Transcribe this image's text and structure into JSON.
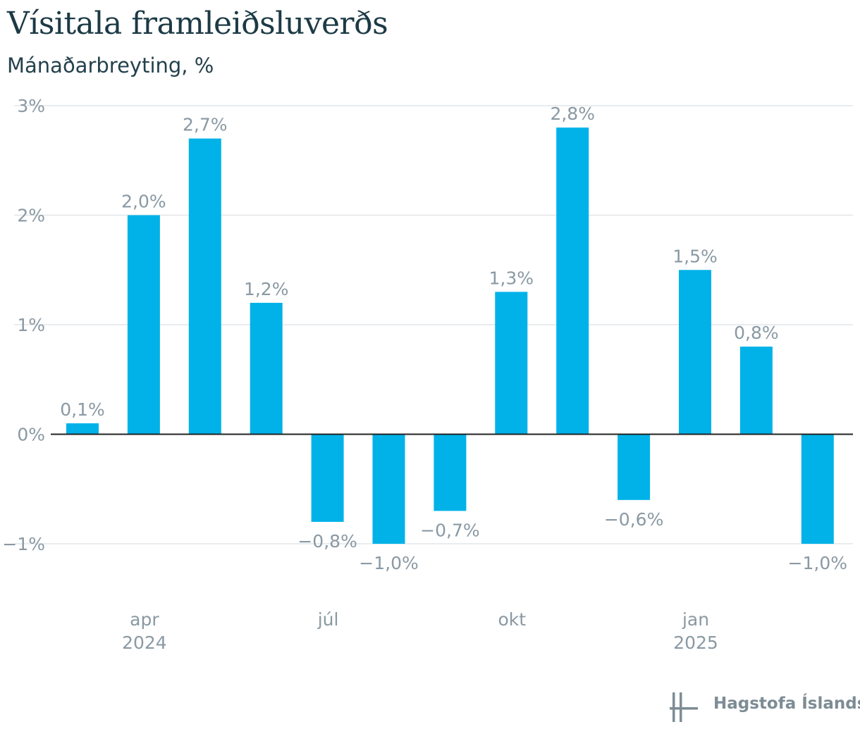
{
  "header": {
    "title": "Vísitala framleiðsluverðs",
    "subtitle": "Mánaðarbreyting, %"
  },
  "chart_data": {
    "type": "bar",
    "categories": [
      "2024-03",
      "2024-04",
      "2024-05",
      "2024-06",
      "2024-07",
      "2024-08",
      "2024-09",
      "2024-10",
      "2024-11",
      "2024-12",
      "2025-01",
      "2025-02",
      "2025-03"
    ],
    "values": [
      0.1,
      2.0,
      2.7,
      1.2,
      -0.8,
      -1.0,
      -0.7,
      1.3,
      2.8,
      -0.6,
      1.5,
      0.8,
      -1.0
    ],
    "data_labels": [
      "0,1%",
      "2,0%",
      "2,7%",
      "1,2%",
      "−0,8%",
      "−1,0%",
      "−0,7%",
      "1,3%",
      "2,8%",
      "−0,6%",
      "1,5%",
      "0,8%",
      "−1,0%"
    ],
    "ylim": [
      -1,
      3
    ],
    "y_ticks": [
      {
        "value": 3,
        "label": "3%"
      },
      {
        "value": 2,
        "label": "2%"
      },
      {
        "value": 1,
        "label": "1%"
      },
      {
        "value": 0,
        "label": "0%"
      },
      {
        "value": -1,
        "label": "−1%"
      }
    ],
    "x_ticks": [
      {
        "index": 1,
        "label": "apr",
        "sublabel": "2024"
      },
      {
        "index": 4,
        "label": "júl",
        "sublabel": ""
      },
      {
        "index": 7,
        "label": "okt",
        "sublabel": ""
      },
      {
        "index": 10,
        "label": "jan",
        "sublabel": "2025"
      }
    ],
    "grid": true,
    "xlabel": "",
    "ylabel": "",
    "bar_color": "#00b2e8",
    "label_color": "#8a99a3",
    "grid_color": "#e1e5e8",
    "zero_line_color": "#222222"
  },
  "footer": {
    "logo_text": "Hagstofa Íslands",
    "logo_color": "#7d8c94"
  }
}
